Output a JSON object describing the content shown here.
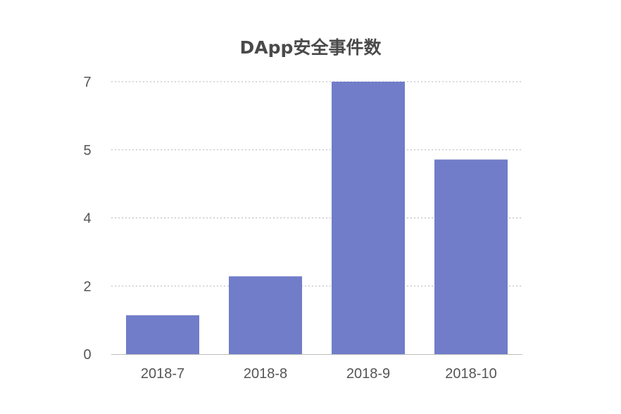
{
  "chart_data": {
    "type": "bar",
    "title": "DApp安全事件数",
    "xlabel": "",
    "ylabel": "",
    "categories": [
      "2018-7",
      "2018-8",
      "2018-9",
      "2018-10"
    ],
    "values": [
      1,
      2,
      7,
      5
    ],
    "y_tick_labels": [
      "0",
      "2",
      "4",
      "5",
      "7"
    ],
    "ylim": [
      0,
      7
    ],
    "grid": true,
    "grid_style": "dotted",
    "legend": "none",
    "bar_color": "#717dc9",
    "grid_color": "#b5b5b5",
    "axis_color": "#bdbdbd",
    "text_color": "#555555",
    "title_color": "#4a4a4a"
  }
}
